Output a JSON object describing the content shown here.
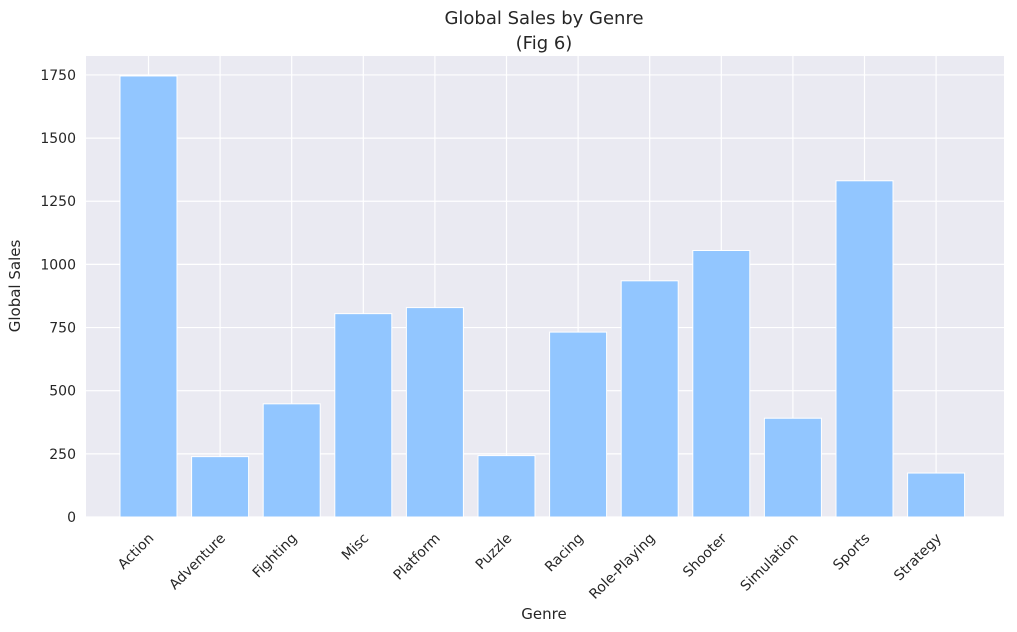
{
  "chart_data": {
    "type": "bar",
    "title": "Global Sales by Genre",
    "subtitle": "(Fig 6)",
    "xlabel": "Genre",
    "ylabel": "Global Sales",
    "categories": [
      "Action",
      "Adventure",
      "Fighting",
      "Misc",
      "Platform",
      "Puzzle",
      "Racing",
      "Role-Playing",
      "Shooter",
      "Simulation",
      "Sports",
      "Strategy"
    ],
    "values": [
      1746,
      239,
      448,
      805,
      829,
      243,
      732,
      935,
      1055,
      391,
      1331,
      174
    ],
    "ylim": [
      0,
      1825
    ],
    "yticks": [
      0,
      250,
      500,
      750,
      1000,
      1250,
      1500,
      1750
    ],
    "ytick_labels": [
      "0",
      "250",
      "500",
      "750",
      "1000",
      "1250",
      "1500",
      "1750"
    ],
    "grid": true,
    "colors": {
      "bar": "#92c6ff",
      "plot_background": "#eaeaf2",
      "grid": "#ffffff"
    }
  }
}
